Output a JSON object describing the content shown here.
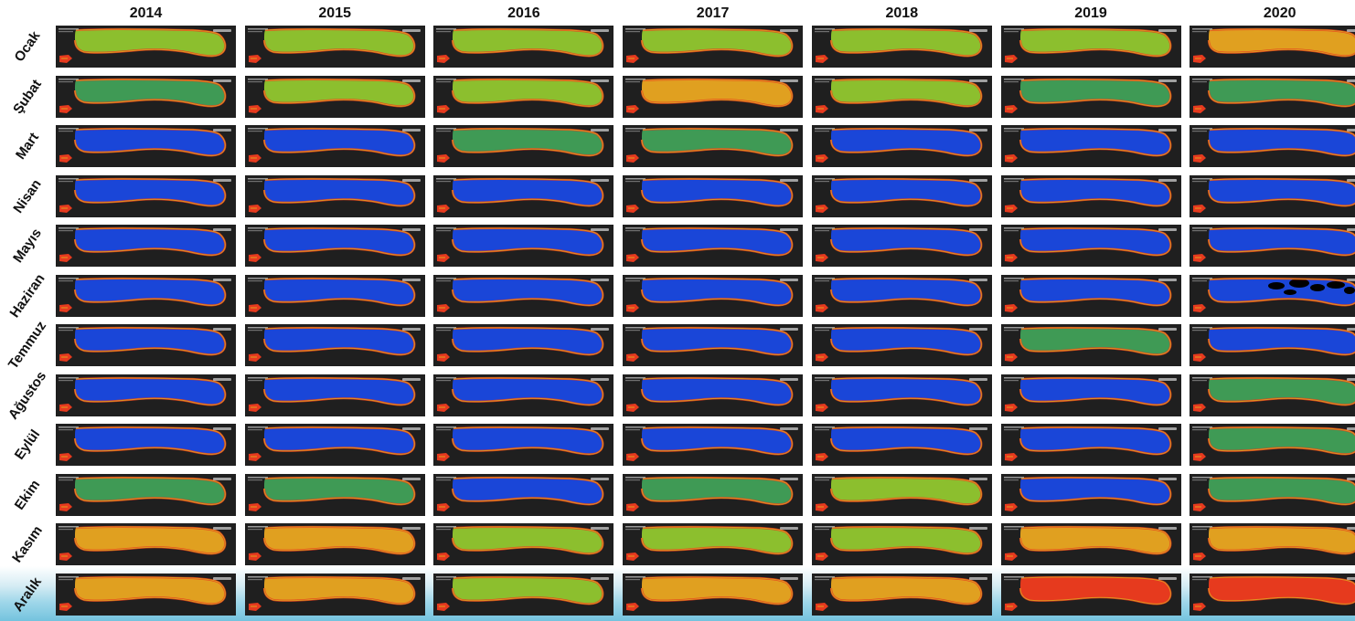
{
  "years": [
    "2014",
    "2015",
    "2016",
    "2017",
    "2018",
    "2019",
    "2020"
  ],
  "months": [
    "Ocak",
    "Şubat",
    "Mart",
    "Nisan",
    "Mayıs",
    "Haziran",
    "Temmuz",
    "Ağustos",
    "Eylül",
    "Ekim",
    "Kasım",
    "Aralık"
  ],
  "colors": {
    "land": "#1f1f1f",
    "low": "#1a46d8",
    "mid": "#3f9a55",
    "moderate": "#8cbf2e",
    "elevated": "#e0a020",
    "high": "#e63a1e",
    "missing": "#000000"
  },
  "tile_state": [
    [
      "moderate",
      "moderate",
      "moderate",
      "moderate",
      "moderate",
      "moderate",
      "elevated"
    ],
    [
      "mid",
      "moderate",
      "moderate",
      "elevated",
      "moderate",
      "mid",
      "mid"
    ],
    [
      "low",
      "low",
      "mid",
      "mid",
      "low",
      "low",
      "low"
    ],
    [
      "low",
      "low",
      "low",
      "low",
      "low",
      "low",
      "low"
    ],
    [
      "low",
      "low",
      "low",
      "low",
      "low",
      "low",
      "low"
    ],
    [
      "low",
      "low",
      "low",
      "low",
      "low",
      "low",
      "missing"
    ],
    [
      "low",
      "low",
      "low",
      "low",
      "low",
      "mid",
      "low"
    ],
    [
      "low",
      "low",
      "low",
      "low",
      "low",
      "low",
      "mid"
    ],
    [
      "low",
      "low",
      "low",
      "low",
      "low",
      "low",
      "mid"
    ],
    [
      "mid",
      "mid",
      "low",
      "mid",
      "moderate",
      "low",
      "mid"
    ],
    [
      "elevated",
      "elevated",
      "moderate",
      "moderate",
      "moderate",
      "elevated",
      "elevated"
    ],
    [
      "elevated",
      "elevated",
      "moderate",
      "elevated",
      "elevated",
      "high",
      "high"
    ]
  ]
}
